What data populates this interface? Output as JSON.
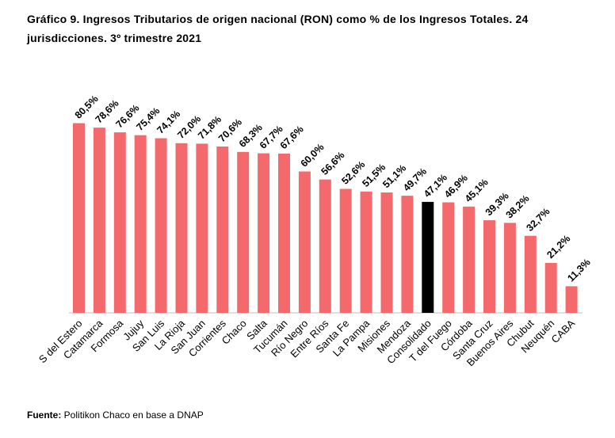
{
  "chart_data": {
    "type": "bar",
    "title": "Gráfico 9. Ingresos Tributarios de origen nacional (RON) como % de los Ingresos Totales. 24 jurisdicciones. 3º trimestre 2021",
    "categories": [
      "S del Estero",
      "Catamarca",
      "Formosa",
      "Jujuy",
      "San Luis",
      "La Rioja",
      "San Juan",
      "Corrientes",
      "Chaco",
      "Salta",
      "Tucumán",
      "Río Negro",
      "Entre Ríos",
      "Santa Fe",
      "La Pampa",
      "Misiones",
      "Mendoza",
      "Consolidado",
      "T del Fuego",
      "Córdoba",
      "Santa Cruz",
      "Buenos Aires",
      "Chubut",
      "Neuquén",
      "CABA"
    ],
    "values": [
      80.5,
      78.6,
      76.6,
      75.4,
      74.1,
      72.0,
      71.8,
      70.6,
      68.3,
      67.7,
      67.6,
      60.0,
      56.6,
      52.6,
      51.5,
      51.1,
      49.7,
      47.1,
      46.9,
      45.1,
      39.3,
      38.2,
      32.7,
      21.2,
      11.3
    ],
    "value_labels": [
      "80,5%",
      "78,6%",
      "76,6%",
      "75,4%",
      "74,1%",
      "72,0%",
      "71,8%",
      "70,6%",
      "68,3%",
      "67,7%",
      "67,6%",
      "60,0%",
      "56,6%",
      "52,6%",
      "51,5%",
      "51,1%",
      "49,7%",
      "47,1%",
      "46,9%",
      "45,1%",
      "39,3%",
      "38,2%",
      "32,7%",
      "21,2%",
      "11,3%"
    ],
    "highlight_category": "Consolidado",
    "colors": {
      "bar": "#f4696b",
      "highlight": "#000000",
      "axis": "#bfbfbf"
    },
    "ylim": [
      0,
      100
    ],
    "grid": false,
    "legend": "none",
    "xlabel": "",
    "ylabel": ""
  },
  "source": {
    "label": "Fuente:",
    "text": " Politikon Chaco en base a DNAP"
  }
}
